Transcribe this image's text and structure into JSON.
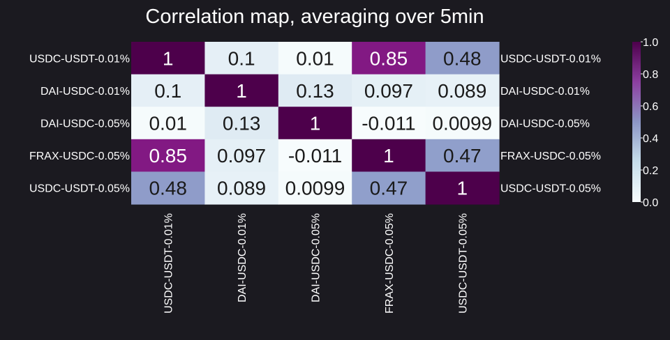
{
  "chart_data": {
    "type": "heatmap",
    "title": "Correlation map, averaging over 5min",
    "row_labels": [
      "USDC-USDT-0.01%",
      "DAI-USDC-0.01%",
      "DAI-USDC-0.05%",
      "FRAX-USDC-0.05%",
      "USDC-USDT-0.05%"
    ],
    "col_labels": [
      "USDC-USDT-0.01%",
      "DAI-USDC-0.01%",
      "DAI-USDC-0.05%",
      "FRAX-USDC-0.05%",
      "USDC-USDT-0.05%"
    ],
    "values": [
      [
        1,
        0.1,
        0.01,
        0.85,
        0.48
      ],
      [
        0.1,
        1,
        0.13,
        0.097,
        0.089
      ],
      [
        0.01,
        0.13,
        1,
        -0.011,
        0.0099
      ],
      [
        0.85,
        0.097,
        -0.011,
        1,
        0.47
      ],
      [
        0.48,
        0.089,
        0.0099,
        0.47,
        1
      ]
    ],
    "annotations": [
      [
        "1",
        "0.1",
        "0.01",
        "0.85",
        "0.48"
      ],
      [
        "0.1",
        "1",
        "0.13",
        "0.097",
        "0.089"
      ],
      [
        "0.01",
        "0.13",
        "1",
        "-0.011",
        "0.0099"
      ],
      [
        "0.85",
        "0.097",
        "-0.011",
        "1",
        "0.47"
      ],
      [
        "0.48",
        "0.089",
        "0.0099",
        "0.47",
        "1"
      ]
    ],
    "colormap": "BuPu",
    "vmin": 0,
    "vmax": 1,
    "colorbar_ticks": [
      "0.0",
      "0.2",
      "0.4",
      "0.6",
      "0.8",
      "1.0"
    ],
    "row_labels_both_sides": true,
    "grid": false,
    "background_color": "#1b1a20",
    "text_color": "#ffffff"
  }
}
